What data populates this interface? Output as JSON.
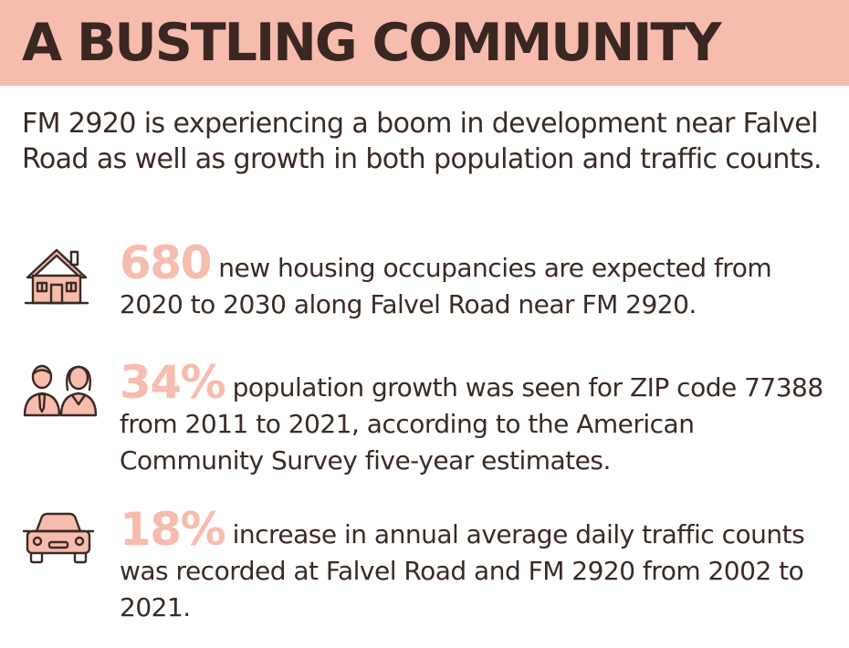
{
  "header": {
    "title": "A BUSTLING COMMUNITY"
  },
  "intro": {
    "text": "FM 2920 is experiencing a boom in development near Falvel Road as well as growth in both population and traffic counts."
  },
  "stats": [
    {
      "icon": "house-icon",
      "number": "680",
      "text": " new housing occupancies are expected from 2020 to 2030 along Falvel Road near FM 2920."
    },
    {
      "icon": "people-icon",
      "number": "34%",
      "text": " population growth was seen for ZIP code 77388 from 2011 to 2021, according to the American Community Survey five-year estimates."
    },
    {
      "icon": "car-icon",
      "number": "18%",
      "text": " increase in annual average daily traffic counts was recorded at Falvel Road and FM 2920 from 2002 to 2021."
    }
  ],
  "colors": {
    "accent": "#f6bcae",
    "text": "#3b2a25",
    "background": "#ffffff"
  }
}
